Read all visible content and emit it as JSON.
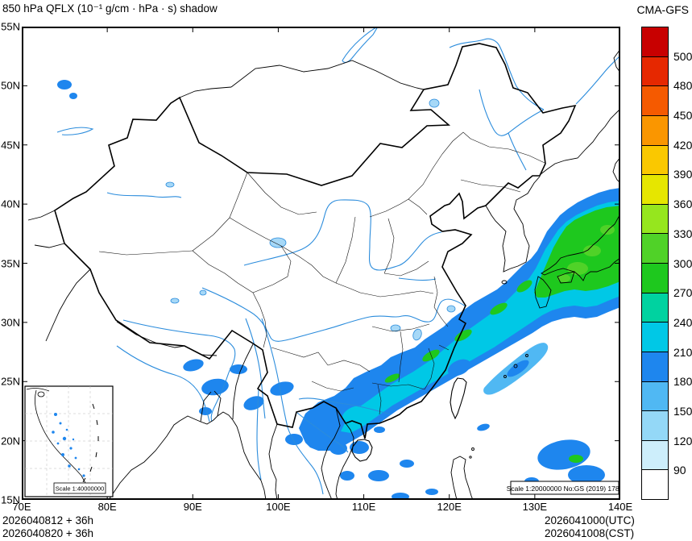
{
  "header": {
    "title": "850 hPa QFLX (10⁻¹ g/cm · hPa · s) shadow",
    "model": "CMA-GFS"
  },
  "axes": {
    "x_ticks": [
      "70E",
      "80E",
      "90E",
      "100E",
      "110E",
      "120E",
      "130E",
      "140E"
    ],
    "y_ticks": [
      "55N",
      "50N",
      "45N",
      "40N",
      "35N",
      "30N",
      "25N",
      "20N",
      "15N"
    ]
  },
  "colorbar": {
    "levels": [
      "90",
      "120",
      "150",
      "180",
      "210",
      "240",
      "270",
      "300",
      "330",
      "360",
      "390",
      "420",
      "450",
      "480",
      "500"
    ],
    "colors": [
      "#ffffff",
      "#cdeefb",
      "#94d8f7",
      "#50b8f3",
      "#1e86ee",
      "#00c8e6",
      "#00d2a0",
      "#1ec81e",
      "#50d228",
      "#96e61e",
      "#e6e600",
      "#fac800",
      "#fa9600",
      "#f55a00",
      "#e62800",
      "#c80000"
    ]
  },
  "map_labels": {
    "scale_note": "Scale 1:20000000 No:GS (2019) 1786",
    "inset_scale_note": "Scale 1:40000000"
  },
  "footer": {
    "init_utc": "2026040812 + 36h",
    "init_cst": "2026040820 + 36h",
    "valid_utc": "2026041000(UTC)",
    "valid_cst": "2026041008(CST)"
  },
  "chart_data": {
    "type": "heatmap",
    "field": "850 hPa moisture flux (QFLX)",
    "units": "10^-1 g/cm·hPa·s",
    "model": "CMA-GFS",
    "init_time": "2026040812 UTC",
    "forecast_hour": 36,
    "valid_time": "2026041000 UTC / 2026041008 CST",
    "lon_range_deg_e": [
      70,
      140
    ],
    "lat_range_deg_n": [
      15,
      55
    ],
    "contour_levels": [
      90,
      120,
      150,
      180,
      210,
      240,
      270,
      300,
      330,
      360,
      390,
      420,
      450,
      480,
      500
    ],
    "legend_position": "right",
    "grid": false,
    "features": [
      {
        "name": "main moisture-flux band",
        "description": "SW-NE oriented band from the Gulf of Tonkin / Guangxi (~104E,21N) along the southeast China coast and East China Sea to Japan (~140E,40N)",
        "edge_level": 150,
        "core_level": 270
      },
      {
        "name": "maximum over Japan and surrounding seas",
        "approx_center": "134E,35N",
        "max_level": 330
      },
      {
        "name": "secondary streak",
        "description": "detached blue streak over the Ryukyu Islands (~122-131E,25-29N)",
        "max_level": 210
      },
      {
        "name": "scattered weak patches (90-180)",
        "locations": [
          "NE India / Myanmar / Yunnan border",
          "Gulf of Tonkin and northern South China Sea",
          "Hainan vicinity",
          "east of Taiwan",
          "Philippine Sea (~131-139E,15-19N) with small 270 core",
          "northern Kazakhstan (~75E,50N)"
        ]
      }
    ]
  }
}
